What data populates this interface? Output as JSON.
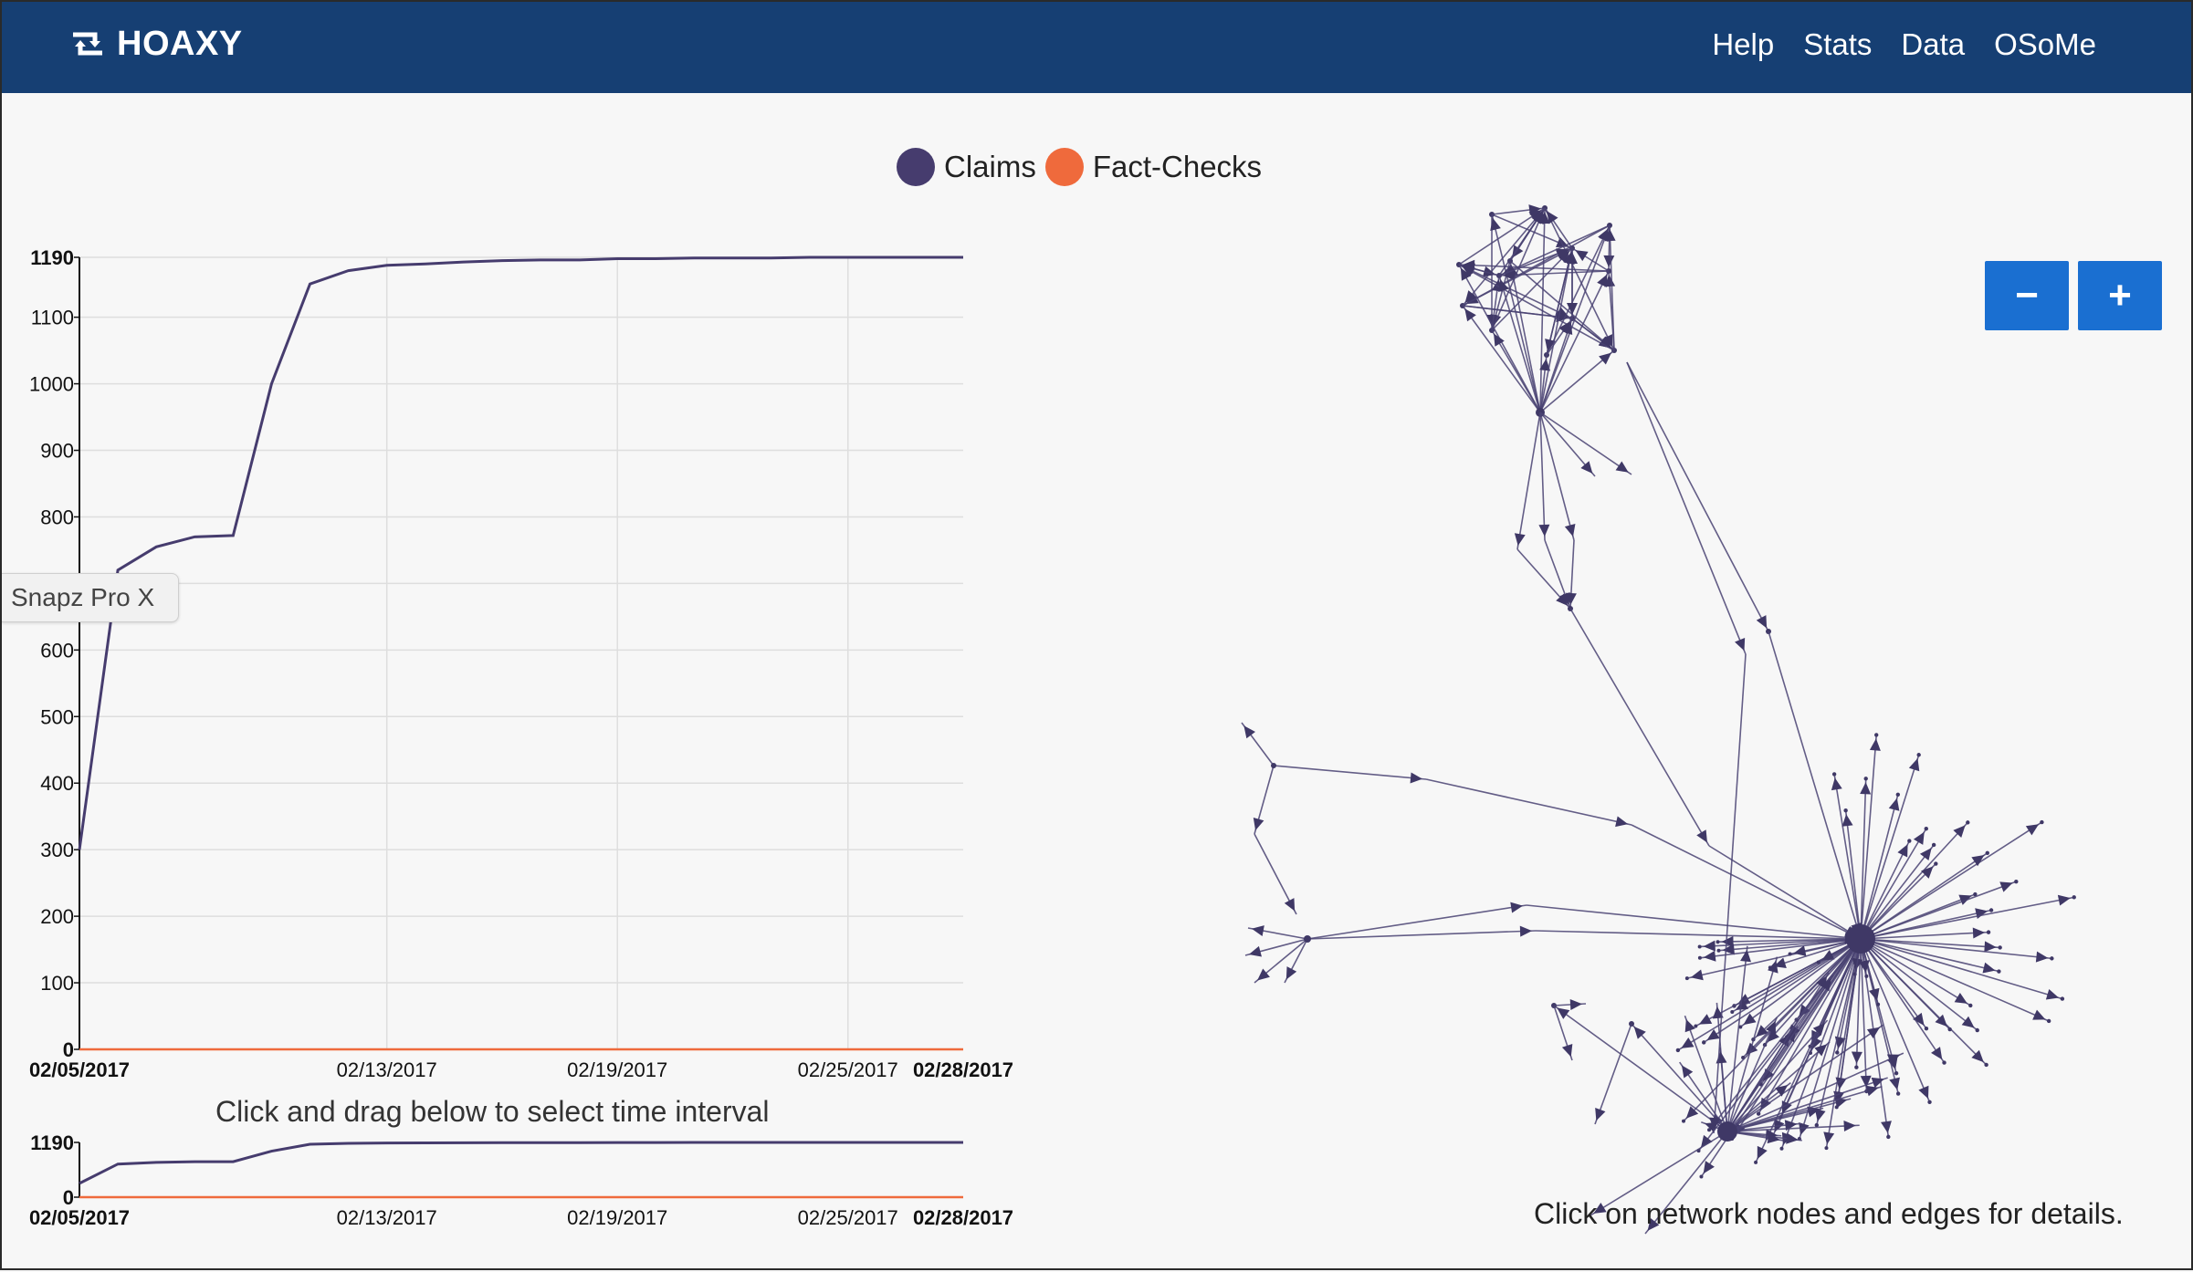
{
  "header": {
    "brand": "HOAXY",
    "nav": [
      "Help",
      "Stats",
      "Data",
      "OSoMe"
    ]
  },
  "legend": {
    "claims_label": "Claims",
    "factchecks_label": "Fact-Checks",
    "claims_color": "#463c6e",
    "factchecks_color": "#ef6a3c"
  },
  "tooltip_tab": "Snapz Pro X",
  "drag_hint": "Click and drag below to select time interval",
  "network_hint": "Click on network nodes and edges for details.",
  "zoom": {
    "out_label": "−",
    "in_label": "+"
  },
  "chart_data": {
    "type": "line",
    "main": {
      "ylim": [
        0,
        1190
      ],
      "y_ticks": [
        "0",
        "100",
        "200",
        "300",
        "400",
        "500",
        "600",
        "700",
        "800",
        "900",
        "1000",
        "1100",
        "1190"
      ],
      "x_ticks": [
        "02/05/2017",
        "02/13/2017",
        "02/19/2017",
        "02/25/2017",
        "02/28/2017"
      ],
      "x_tick_days": [
        0,
        8,
        14,
        20,
        23
      ],
      "series": [
        {
          "color": "#463c6e",
          "x": [
            0,
            1,
            2,
            3,
            4,
            5,
            6,
            7,
            8,
            9,
            10,
            11,
            12,
            13,
            14,
            15,
            16,
            17,
            18,
            19,
            20,
            21,
            22,
            23
          ],
          "values": [
            300,
            720,
            755,
            770,
            772,
            1000,
            1150,
            1170,
            1178,
            1180,
            1183,
            1185,
            1186,
            1186,
            1188,
            1188,
            1189,
            1189,
            1189,
            1190,
            1190,
            1190,
            1190,
            1190
          ]
        },
        {
          "color": "#ef6a3c",
          "x": [
            0,
            23
          ],
          "values": [
            0,
            0
          ]
        }
      ]
    },
    "brush": {
      "ylim": [
        0,
        1190
      ],
      "y_ticks": [
        "0",
        "1190"
      ],
      "x_ticks": [
        "02/05/2017",
        "02/13/2017",
        "02/19/2017",
        "02/25/2017",
        "02/28/2017"
      ]
    }
  }
}
